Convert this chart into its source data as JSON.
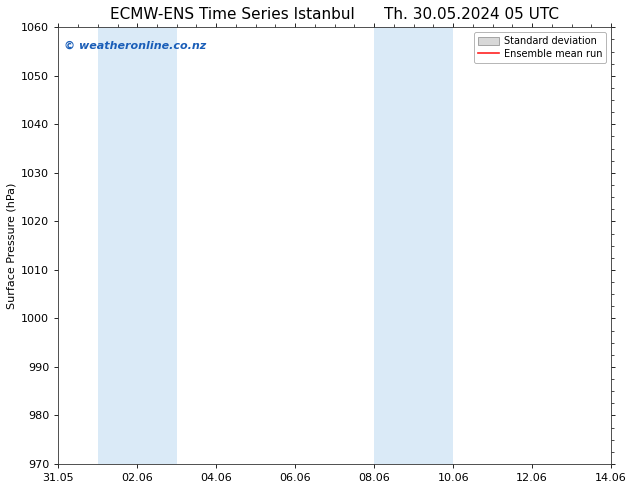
{
  "title_left": "ECMW-ENS Time Series Istanbul",
  "title_right": "Th. 30.05.2024 05 UTC",
  "ylabel": "Surface Pressure (hPa)",
  "ylim": [
    970,
    1060
  ],
  "yticks": [
    970,
    980,
    990,
    1000,
    1010,
    1020,
    1030,
    1040,
    1050,
    1060
  ],
  "xtick_labels": [
    "31.05",
    "02.06",
    "04.06",
    "06.06",
    "08.06",
    "10.06",
    "12.06",
    "14.06"
  ],
  "xtick_positions": [
    0,
    2,
    4,
    6,
    8,
    10,
    12,
    14
  ],
  "xlim": [
    0,
    14
  ],
  "shaded_regions": [
    {
      "x_start": 1,
      "x_end": 3,
      "color": "#daeaf7"
    },
    {
      "x_start": 8,
      "x_end": 10,
      "color": "#daeaf7"
    }
  ],
  "watermark_text": "© weatheronline.co.nz",
  "watermark_color": "#1a5eb8",
  "legend_std_label": "Standard deviation",
  "legend_mean_label": "Ensemble mean run",
  "legend_mean_color": "#ff2222",
  "legend_std_facecolor": "#d8d8d8",
  "legend_std_edgecolor": "#999999",
  "background_color": "#ffffff",
  "plot_bg_color": "#ffffff",
  "title_fontsize": 11,
  "axis_fontsize": 8,
  "ylabel_fontsize": 8,
  "watermark_fontsize": 8
}
